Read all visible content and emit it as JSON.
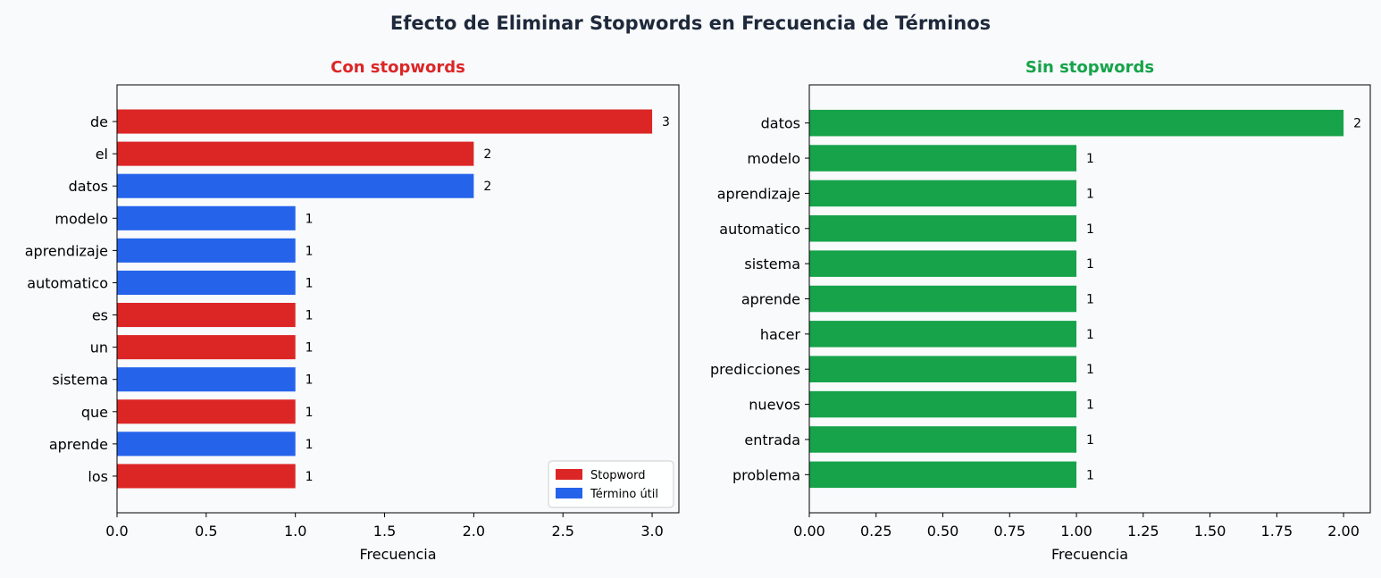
{
  "figure": {
    "title": "Efecto de Eliminar Stopwords en Frecuencia de Términos"
  },
  "colors": {
    "stopword": "#dc2626",
    "useful": "#2563eb",
    "clean": "#16a34a",
    "title_dark": "#1e293b",
    "background": "#f8fafc"
  },
  "chart_data": [
    {
      "type": "bar",
      "orientation": "horizontal",
      "title": "Con stopwords",
      "title_color": "#dc2626",
      "xlabel": "Frecuencia",
      "ylabel": "",
      "xlim": [
        0,
        3.15
      ],
      "xticks": [
        "0.0",
        "0.5",
        "1.0",
        "1.5",
        "2.0",
        "2.5",
        "3.0"
      ],
      "xtick_values": [
        0,
        0.5,
        1.0,
        1.5,
        2.0,
        2.5,
        3.0
      ],
      "categories": [
        "de",
        "el",
        "datos",
        "modelo",
        "aprendizaje",
        "automatico",
        "es",
        "un",
        "sistema",
        "que",
        "aprende",
        "los"
      ],
      "values": [
        3,
        2,
        2,
        1,
        1,
        1,
        1,
        1,
        1,
        1,
        1,
        1
      ],
      "classes": [
        "stopword",
        "stopword",
        "useful",
        "useful",
        "useful",
        "useful",
        "stopword",
        "stopword",
        "useful",
        "stopword",
        "useful",
        "stopword"
      ],
      "legend": {
        "placement": "lower right",
        "entries": [
          {
            "label": "Stopword",
            "color": "#dc2626"
          },
          {
            "label": "Término útil",
            "color": "#2563eb"
          }
        ]
      },
      "grid": false
    },
    {
      "type": "bar",
      "orientation": "horizontal",
      "title": "Sin stopwords",
      "title_color": "#16a34a",
      "xlabel": "Frecuencia",
      "ylabel": "",
      "xlim": [
        0,
        2.1
      ],
      "xticks": [
        "0.00",
        "0.25",
        "0.50",
        "0.75",
        "1.00",
        "1.25",
        "1.50",
        "1.75",
        "2.00"
      ],
      "xtick_values": [
        0,
        0.25,
        0.5,
        0.75,
        1.0,
        1.25,
        1.5,
        1.75,
        2.0
      ],
      "categories": [
        "datos",
        "modelo",
        "aprendizaje",
        "automatico",
        "sistema",
        "aprende",
        "hacer",
        "predicciones",
        "nuevos",
        "entrada",
        "problema"
      ],
      "values": [
        2,
        1,
        1,
        1,
        1,
        1,
        1,
        1,
        1,
        1,
        1
      ],
      "bar_color": "#16a34a",
      "grid": false
    }
  ]
}
